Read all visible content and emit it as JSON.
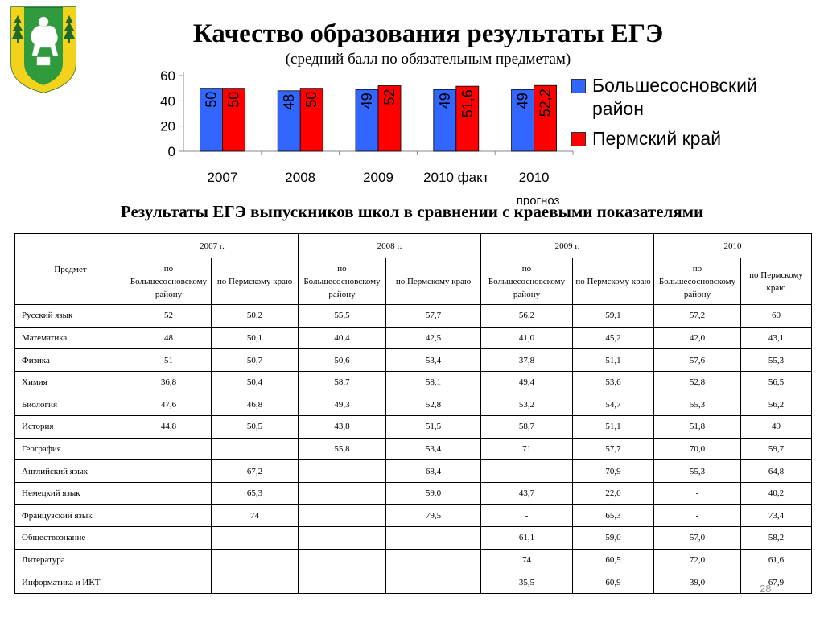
{
  "header": {
    "title": "Качество образования результаты ЕГЭ",
    "subtitle": "(средний балл по обязательным предметам)"
  },
  "crest": {
    "icon": "coat-of-arms-icon",
    "colors": {
      "field": "#2f9b3d",
      "shield": "#f3d21c"
    }
  },
  "chart_data": {
    "type": "bar",
    "categories": [
      "2007",
      "2008",
      "2009",
      "2010 факт",
      "2010 прогноз"
    ],
    "series": [
      {
        "name": "Большесосновский район",
        "values": [
          50,
          48,
          49,
          49,
          49
        ],
        "labels": [
          "50",
          "48",
          "49",
          "49",
          "49"
        ],
        "color": "#3366ff"
      },
      {
        "name": "Пермский край",
        "values": [
          50,
          50,
          52,
          51.6,
          52.2
        ],
        "labels": [
          "50",
          "50",
          "52",
          "51,6",
          "52,2"
        ],
        "color": "#ff0000"
      }
    ],
    "ylim": [
      0,
      60
    ],
    "yticks": [
      0,
      20,
      40,
      60
    ],
    "grid": false,
    "legend": "right"
  },
  "table": {
    "title": "Результаты ЕГЭ выпускников школ в сравнении с краевыми показателями",
    "subject_header": "Предмет",
    "years": [
      "2007 г.",
      "2008 г.",
      "2009 г.",
      "2010"
    ],
    "subheaders": [
      "по Большесосновскому району",
      "по Пермскому краю",
      "по Большесосновскому району",
      "по Пермскому краю",
      "по Большесосновскому району",
      "по Пермскому краю",
      "по Большесосновскому району",
      "по Пермскому краю"
    ],
    "rows": [
      {
        "subject": "Русский язык",
        "values": [
          "52",
          "50,2",
          "55,5",
          "57,7",
          "56,2",
          "59,1",
          "57,2",
          "60"
        ]
      },
      {
        "subject": "Математика",
        "values": [
          "48",
          "50,1",
          "40,4",
          "42,5",
          "41,0",
          "45,2",
          "42,0",
          "43,1"
        ]
      },
      {
        "subject": "Физика",
        "values": [
          "51",
          "50,7",
          "50,6",
          "53,4",
          "37,8",
          "51,1",
          "57,6",
          "55,3"
        ]
      },
      {
        "subject": "Химия",
        "values": [
          "36,8",
          "50,4",
          "58,7",
          "58,1",
          "49,4",
          "53,6",
          "52,8",
          "56,5"
        ]
      },
      {
        "subject": "Биология",
        "values": [
          "47,6",
          "46,8",
          "49,3",
          "52,8",
          "53,2",
          "54,7",
          "55,3",
          "56,2"
        ]
      },
      {
        "subject": "История",
        "values": [
          "44,8",
          "50,5",
          "43,8",
          "51,5",
          "58,7",
          "51,1",
          "51,8",
          "49"
        ]
      },
      {
        "subject": "География",
        "values": [
          "",
          "",
          "55,8",
          "53,4",
          "71",
          "57,7",
          "70,0",
          "59,7"
        ]
      },
      {
        "subject": "Английский язык",
        "values": [
          "",
          "67,2",
          "",
          "68,4",
          "-",
          "70,9",
          "55,3",
          "64,8"
        ]
      },
      {
        "subject": "Немецкий язык",
        "values": [
          "",
          "65,3",
          "",
          "59,0",
          "43,7",
          "22,0",
          "-",
          "40,2"
        ]
      },
      {
        "subject": "Французский язык",
        "values": [
          "",
          "74",
          "",
          "79,5",
          "-",
          "65,3",
          "-",
          "73,4"
        ]
      },
      {
        "subject": "Обществознание",
        "values": [
          "",
          "",
          "",
          "",
          "61,1",
          "59,0",
          "57,0",
          "58,2"
        ]
      },
      {
        "subject": "Литература",
        "values": [
          "",
          "",
          "",
          "",
          "74",
          "60,5",
          "72,0",
          "61,6"
        ]
      },
      {
        "subject": "Информатика и ИКТ",
        "values": [
          "",
          "",
          "",
          "",
          "35,5",
          "60,9",
          "39,0",
          "67,9"
        ]
      }
    ]
  },
  "page_number": "28"
}
